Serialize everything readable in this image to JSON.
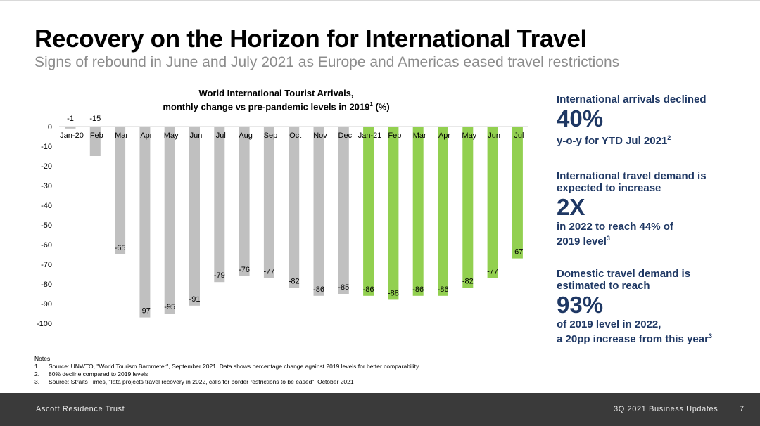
{
  "header": {
    "title": "Recovery on the Horizon for International Travel",
    "subtitle": "Signs of rebound in June and July 2021 as Europe and Americas eased travel restrictions"
  },
  "chart_title": {
    "line1": "World International Tourist Arrivals,",
    "line2_pre": "monthly change vs pre-pandemic levels in 2019",
    "line2_sup": "1",
    "line2_post": " (%)"
  },
  "chart_data": {
    "type": "bar",
    "title": "World International Tourist Arrivals, monthly change vs pre-pandemic levels in 2019 (%)",
    "categories": [
      "Jan-20",
      "Feb",
      "Mar",
      "Apr",
      "May",
      "Jun",
      "Jul",
      "Aug",
      "Sep",
      "Oct",
      "Nov",
      "Dec",
      "Jan-21",
      "Feb",
      "Mar",
      "Apr",
      "May",
      "Jun",
      "Jul"
    ],
    "values": [
      -1,
      -15,
      -65,
      -97,
      -95,
      -91,
      -79,
      -76,
      -77,
      -82,
      -86,
      -85,
      -86,
      -88,
      -86,
      -86,
      -82,
      -77,
      -67
    ],
    "y_ticks": [
      0,
      -10,
      -20,
      -30,
      -40,
      -50,
      -60,
      -70,
      -80,
      -90,
      -100
    ],
    "ylim": [
      -100,
      0
    ],
    "grid": false,
    "colors": {
      "2020": "#c0c0c0",
      "2021": "#92d050"
    },
    "split_index": 12
  },
  "panel": {
    "block1": {
      "lead": "International arrivals declined",
      "big": "40%",
      "tail": "y-o-y for YTD Jul 2021",
      "tail_sup": "2"
    },
    "block2": {
      "lead": "International travel demand is expected to increase",
      "big": "2X",
      "tail": "in 2022 to reach 44% of 2019 level",
      "tail_sup": "3"
    },
    "block3": {
      "lead": "Domestic travel demand is estimated to reach",
      "big": "93%",
      "tail1": "of 2019 level in 2022,",
      "tail2": "a 20pp increase from this year",
      "tail_sup": "3"
    }
  },
  "notes": {
    "heading": "Notes:",
    "items": [
      {
        "num": "1.",
        "text": "Source: UNWTO, \"World Tourism Barometer\", September 2021. Data shows percentage change against 2019 levels for better comparability"
      },
      {
        "num": "2.",
        "text": "80% decline compared to 2019 levels"
      },
      {
        "num": "3.",
        "text": "Source: Straits Times, \"Iata projects travel recovery in 2022, calls for border restrictions to be eased\", October 2021"
      }
    ]
  },
  "footer": {
    "left": "Ascott Residence Trust",
    "right": "3Q 2021 Business Updates",
    "page": "7"
  }
}
